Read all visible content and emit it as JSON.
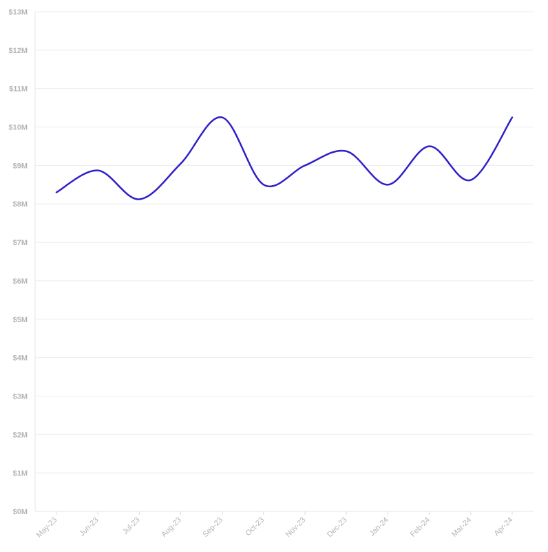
{
  "chart_data": {
    "type": "line",
    "title": "",
    "xlabel": "",
    "ylabel": "",
    "categories": [
      "May-23",
      "Jun-23",
      "Jul-23",
      "Aug-23",
      "Sep-23",
      "Oct-23",
      "Nov-23",
      "Dec-23",
      "Jan-24",
      "Feb-24",
      "Mar-24",
      "Apr-24"
    ],
    "series": [
      {
        "values": [
          8.3,
          8.87,
          8.12,
          9.05,
          10.25,
          8.5,
          9.0,
          9.37,
          8.5,
          9.5,
          8.62,
          10.25
        ],
        "color": "#2e1fc8"
      }
    ],
    "ylim": [
      0,
      13
    ],
    "y_unit": "M",
    "y_prefix": "$",
    "yticks": [
      "$0M",
      "$1M",
      "$2M",
      "$3M",
      "$4M",
      "$5M",
      "$6M",
      "$7M",
      "$8M",
      "$9M",
      "$10M",
      "$11M",
      "$12M",
      "$13M"
    ],
    "grid": true,
    "legend": "none",
    "smooth": true
  }
}
